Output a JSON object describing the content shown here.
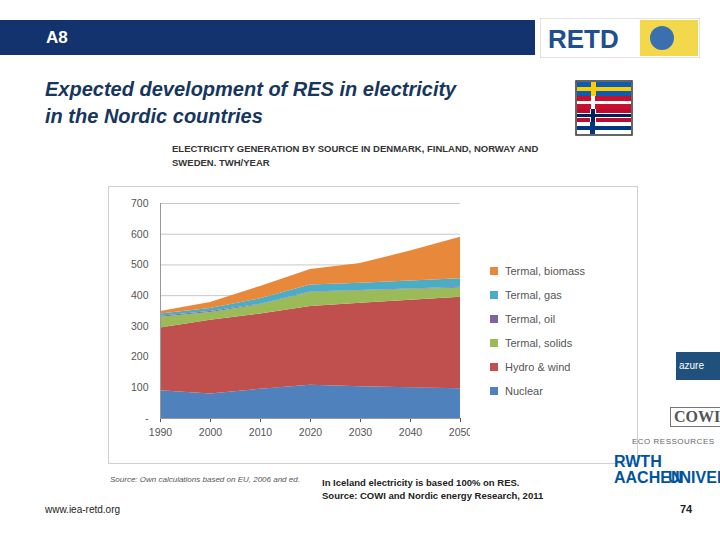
{
  "chart_data": {
    "type": "area",
    "stacked": true,
    "title": "ELECTRICITY GENERATION BY SOURCE IN DENMARK, FINLAND, NORWAY AND SWEDEN. TWH/YEAR",
    "source": "Source: Own calculations based on EU, 2006 and ed.",
    "x": [
      1990,
      2000,
      2010,
      2020,
      2030,
      2040,
      2050
    ],
    "xlim": [
      1990,
      2050
    ],
    "xticks": [
      1990,
      2000,
      2010,
      2020,
      2030,
      2040,
      2050
    ],
    "ylim": [
      0,
      700
    ],
    "yticks": [
      {
        "value": 0,
        "label": "-"
      },
      100,
      200,
      300,
      400,
      500,
      600,
      700
    ],
    "grid": true,
    "legend": "right",
    "series": [
      {
        "name": "Nuclear",
        "color": "#4f81bd",
        "values": [
          90,
          80,
          95,
          108,
          103,
          100,
          97
        ]
      },
      {
        "name": "Hydro & wind",
        "color": "#c0504d",
        "values": [
          205,
          240,
          245,
          257,
          272,
          285,
          298
        ]
      },
      {
        "name": "Termal, solids",
        "color": "#9bbb59",
        "values": [
          35,
          25,
          30,
          45,
          40,
          35,
          30
        ]
      },
      {
        "name": "Termal, oil",
        "color": "#8064a2",
        "values": [
          3,
          3,
          2,
          2,
          2,
          2,
          2
        ]
      },
      {
        "name": "Termal, gas",
        "color": "#4bacc6",
        "values": [
          7,
          10,
          18,
          23,
          23,
          26,
          28
        ]
      },
      {
        "name": "Termal, biomass",
        "color": "#e8883a",
        "values": [
          8,
          20,
          40,
          50,
          65,
          97,
          135
        ]
      }
    ]
  },
  "slide": {
    "header": "A8",
    "logo": "RETD",
    "title": [
      "Expected development of RES in electricity",
      "in the Nordic countries"
    ],
    "url": "www.iea-retd.org",
    "note": [
      "In Iceland electricity is based 100% on RES.",
      "Source: COWI and Nordic energy Research, 2011"
    ],
    "logos": [
      "azure",
      "COWI",
      "ECO RESSOURCES",
      "RWTH AACHEN",
      "UNIVERSITY"
    ],
    "page": "74"
  }
}
